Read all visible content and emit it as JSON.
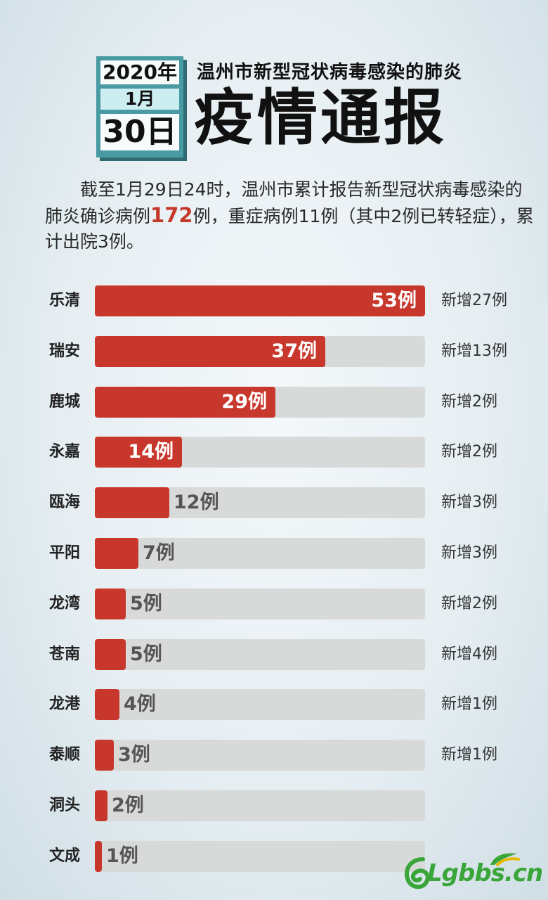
{
  "header": {
    "date_year": "2020年",
    "date_month": "1月",
    "date_day": "30日",
    "subtitle": "温州市新型冠状病毒感染的肺炎",
    "title": "疫情通报"
  },
  "summary": {
    "text_before": "　　截至1月29日24时，温州市累计报告新型冠状病毒感染的肺炎确诊病例",
    "highlight": "172",
    "text_after": "例，重症病例11例（其中2例已转轻症），累计出院3例。"
  },
  "chart_data": {
    "type": "bar",
    "orientation": "horizontal",
    "categories": [
      "乐清",
      "瑞安",
      "鹿城",
      "永嘉",
      "瓯海",
      "平阳",
      "龙湾",
      "苍南",
      "龙港",
      "泰顺",
      "洞头",
      "文成"
    ],
    "values": [
      53,
      37,
      29,
      14,
      12,
      7,
      5,
      5,
      4,
      3,
      2,
      1
    ],
    "value_labels": [
      "53例",
      "37例",
      "29例",
      "14例",
      "12例",
      "7例",
      "5例",
      "5例",
      "4例",
      "3例",
      "2例",
      "1例"
    ],
    "new_labels": [
      "新增27例",
      "新增13例",
      "新增2例",
      "新增2例",
      "新增3例",
      "新增3例",
      "新增2例",
      "新增4例",
      "新增1例",
      "新增1例",
      "",
      ""
    ],
    "xlim": [
      0,
      53
    ]
  },
  "colors": {
    "bar_fill": "#c8372c",
    "bar_track": "#d8d9d9",
    "highlight": "#c4392c",
    "date_box": "#4a9aa3"
  },
  "watermark": {
    "text": "Lgbbs.cn",
    "icon": "swirl-logo-icon"
  }
}
